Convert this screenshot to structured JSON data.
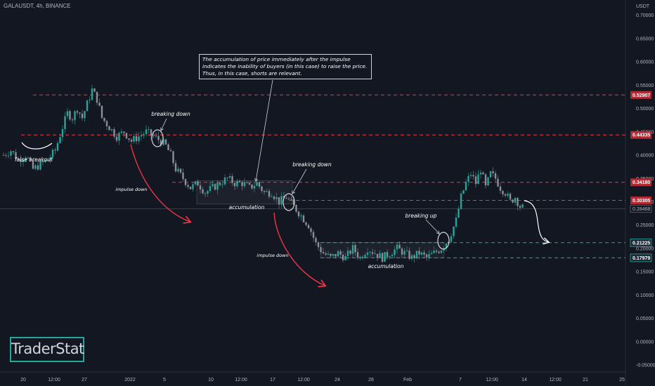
{
  "header": {
    "symbol": "GALAUSDT, 4h, BINANCE",
    "currency": "USDT"
  },
  "logo": {
    "text": "TraderStat"
  },
  "annotation_box": {
    "lines": [
      "The accumulation of price immediately after the impulse",
      "indicates the inability of buyers (in this case) to raise the price.",
      "Thus, in this case, shorts are relevant."
    ]
  },
  "chart_data": {
    "type": "candlestick",
    "y_axis": {
      "ticks": [
        "0.70000",
        "0.65000",
        "0.60000",
        "0.55000",
        "0.50000",
        "0.45000",
        "0.40000",
        "0.35000",
        "0.30000",
        "0.25000",
        "0.20000",
        "0.15000",
        "0.10000",
        "0.05000",
        "0.00000",
        "-0.05000"
      ],
      "tick_values": [
        0.7,
        0.65,
        0.6,
        0.55,
        0.5,
        0.45,
        0.4,
        0.35,
        0.3,
        0.25,
        0.2,
        0.15,
        0.1,
        0.05,
        0,
        -0.05
      ]
    },
    "x_axis": {
      "ticks": [
        "20",
        "12:00",
        "27",
        "2022",
        "5",
        "10",
        "12:00",
        "17",
        "12:00",
        "24",
        "28",
        "Feb",
        "7",
        "12:00",
        "14",
        "12:00",
        "21",
        "25"
      ]
    },
    "current_price": {
      "label": "0.28468",
      "value": 0.28468
    },
    "levels": [
      {
        "label": "0.52907",
        "value": 0.52907,
        "color": "#f23645"
      },
      {
        "label": "0.44335",
        "value": 0.44335,
        "color": "#f23645"
      },
      {
        "label": "0.34180",
        "value": 0.3418,
        "color": "#f23645"
      },
      {
        "label": "0.30305",
        "value": 0.30305,
        "color": "#f23645"
      },
      {
        "label": "0.21225",
        "value": 0.21225,
        "color": "#26a69a"
      },
      {
        "label": "0.17979",
        "value": 0.17979,
        "color": "#26a69a"
      }
    ],
    "price_path": [
      [
        0,
        0.4
      ],
      [
        3,
        0.41
      ],
      [
        6,
        0.39
      ],
      [
        9,
        0.4
      ],
      [
        12,
        0.37
      ],
      [
        15,
        0.38
      ],
      [
        18,
        0.39
      ],
      [
        21,
        0.41
      ],
      [
        24,
        0.46
      ],
      [
        26,
        0.49
      ],
      [
        28,
        0.48
      ],
      [
        30,
        0.5
      ],
      [
        32,
        0.48
      ],
      [
        34,
        0.51
      ],
      [
        36,
        0.54
      ],
      [
        38,
        0.52
      ],
      [
        40,
        0.48
      ],
      [
        43,
        0.46
      ],
      [
        46,
        0.44
      ],
      [
        49,
        0.45
      ],
      [
        52,
        0.43
      ],
      [
        55,
        0.44
      ],
      [
        58,
        0.45
      ],
      [
        61,
        0.44
      ],
      [
        64,
        0.43
      ],
      [
        66,
        0.42
      ],
      [
        68,
        0.4
      ],
      [
        70,
        0.37
      ],
      [
        73,
        0.35
      ],
      [
        76,
        0.33
      ],
      [
        79,
        0.34
      ],
      [
        82,
        0.32
      ],
      [
        85,
        0.33
      ],
      [
        88,
        0.34
      ],
      [
        91,
        0.35
      ],
      [
        94,
        0.34
      ],
      [
        97,
        0.34
      ],
      [
        100,
        0.33
      ],
      [
        103,
        0.34
      ],
      [
        106,
        0.32
      ],
      [
        109,
        0.32
      ],
      [
        112,
        0.3
      ],
      [
        115,
        0.31
      ],
      [
        118,
        0.29
      ],
      [
        121,
        0.27
      ],
      [
        124,
        0.25
      ],
      [
        127,
        0.21
      ],
      [
        130,
        0.19
      ],
      [
        133,
        0.18
      ],
      [
        136,
        0.19
      ],
      [
        139,
        0.18
      ],
      [
        142,
        0.2
      ],
      [
        145,
        0.18
      ],
      [
        148,
        0.2
      ],
      [
        151,
        0.19
      ],
      [
        154,
        0.18
      ],
      [
        157,
        0.19
      ],
      [
        160,
        0.2
      ],
      [
        163,
        0.19
      ],
      [
        166,
        0.18
      ],
      [
        169,
        0.19
      ],
      [
        172,
        0.18
      ],
      [
        175,
        0.19
      ],
      [
        178,
        0.2
      ],
      [
        181,
        0.22
      ],
      [
        184,
        0.26
      ],
      [
        186,
        0.31
      ],
      [
        188,
        0.34
      ],
      [
        190,
        0.36
      ],
      [
        192,
        0.34
      ],
      [
        194,
        0.37
      ],
      [
        196,
        0.33
      ],
      [
        198,
        0.36
      ],
      [
        200,
        0.35
      ],
      [
        202,
        0.33
      ],
      [
        204,
        0.32
      ],
      [
        206,
        0.3
      ],
      [
        208,
        0.31
      ],
      [
        210,
        0.29
      ],
      [
        212,
        0.285
      ]
    ],
    "annotations": [
      {
        "text": "false breakout"
      },
      {
        "text": "breaking down"
      },
      {
        "text": "impulse down"
      },
      {
        "text": "accumulation"
      },
      {
        "text": "breaking down"
      },
      {
        "text": "impulse down"
      },
      {
        "text": "breaking up"
      },
      {
        "text": "accumulation"
      }
    ]
  }
}
